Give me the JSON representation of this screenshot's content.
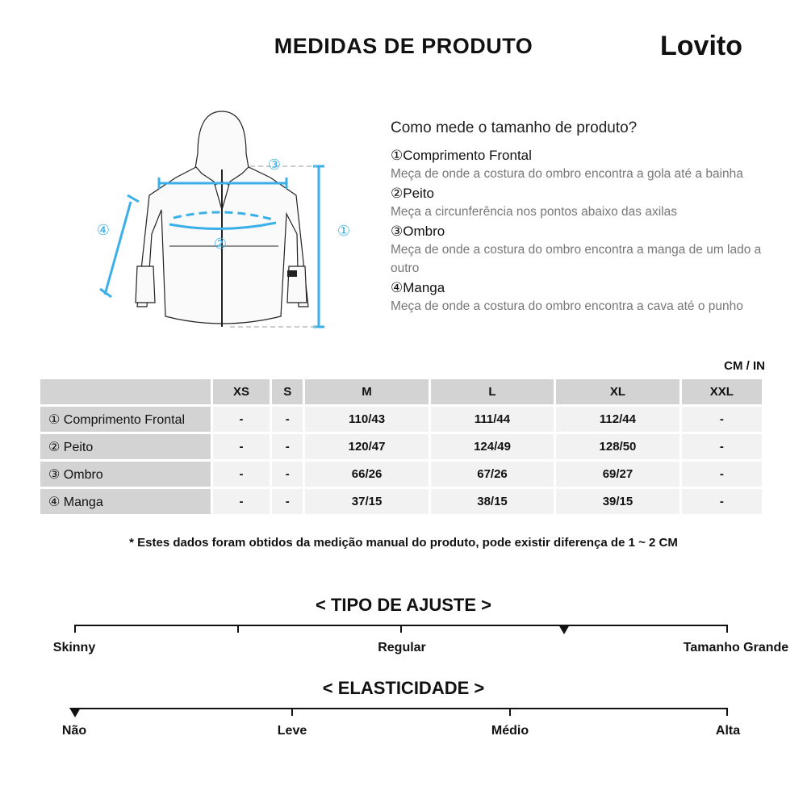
{
  "header": {
    "title": "MEDIDAS DE PRODUTO",
    "logo": "Lovito"
  },
  "guide": {
    "heading": "Como mede o tamanho de produto?",
    "items": [
      {
        "title": "①Comprimento Frontal",
        "desc": "Meça de onde a costura do ombro encontra a gola até a bainha"
      },
      {
        "title": "②Peito",
        "desc": "Meça a circunferência nos pontos abaixo das axilas"
      },
      {
        "title": "③Ombro",
        "desc": "Meça de onde a costura do ombro encontra a manga de um lado a outro"
      },
      {
        "title": "④Manga",
        "desc": "Meça de onde a costura do ombro encontra a cava até o punho"
      }
    ]
  },
  "diagram": {
    "markers": [
      "①",
      "②",
      "③",
      "④"
    ],
    "accent": "#3bb0e8"
  },
  "table": {
    "unit": "CM / IN",
    "sizes": [
      "XS",
      "S",
      "M",
      "L",
      "XL",
      "XXL"
    ],
    "rows": [
      {
        "label": "① Comprimento Frontal",
        "values": [
          "-",
          "-",
          "110/43",
          "111/44",
          "112/44",
          "-"
        ]
      },
      {
        "label": "② Peito",
        "values": [
          "-",
          "-",
          "120/47",
          "124/49",
          "128/50",
          "-"
        ]
      },
      {
        "label": "③ Ombro",
        "values": [
          "-",
          "-",
          "66/26",
          "67/26",
          "69/27",
          "-"
        ]
      },
      {
        "label": "④ Manga",
        "values": [
          "-",
          "-",
          "37/15",
          "38/15",
          "39/15",
          "-"
        ]
      }
    ]
  },
  "note": "* Estes dados foram obtidos da medição manual do produto, pode existir diferença de 1 ~ 2 CM",
  "fit": {
    "title": "< TIPO DE AJUSTE >",
    "labels": [
      "Skinny",
      "Regular",
      "Tamanho Grande"
    ],
    "level_percent": 75
  },
  "elasticity": {
    "title": "< ELASTICIDADE >",
    "labels": [
      "Não",
      "Leve",
      "Médio",
      "Alta"
    ],
    "level_percent": 0
  }
}
